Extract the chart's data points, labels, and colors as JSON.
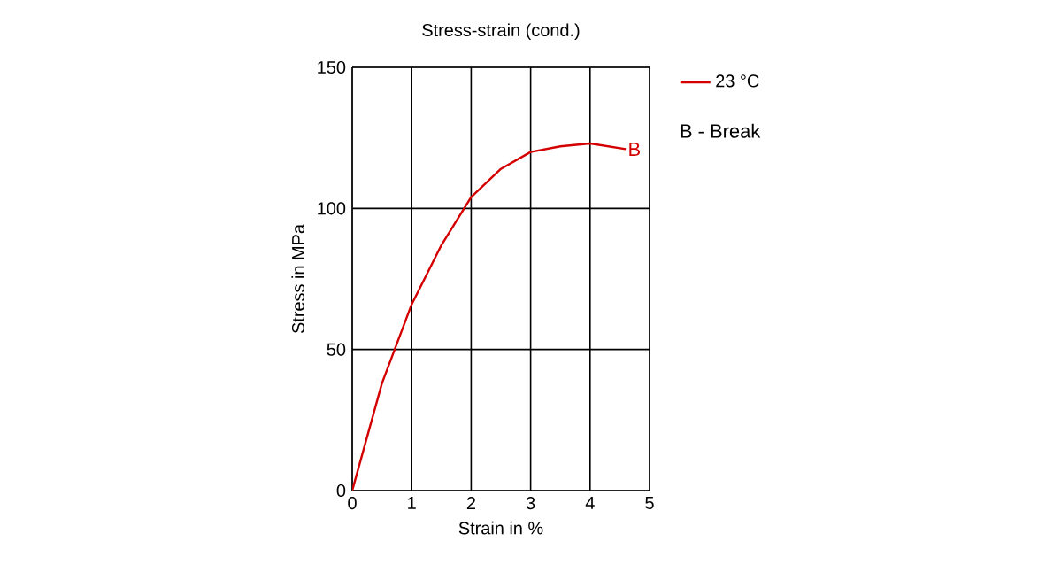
{
  "chart_data": {
    "type": "line",
    "title": "Stress-strain (cond.)",
    "xlabel": "Strain in %",
    "ylabel": "Stress in MPa",
    "x": [
      0,
      0.5,
      1,
      1.5,
      2,
      2.5,
      3,
      3.5,
      4,
      4.6
    ],
    "series": [
      {
        "name": "23 °C",
        "color": "#d40000",
        "values": [
          0,
          38,
          66,
          87,
          104,
          114,
          120,
          122,
          123,
          121
        ]
      }
    ],
    "xlim": [
      0,
      5
    ],
    "ylim": [
      0,
      150
    ],
    "xticks": [
      0,
      1,
      2,
      3,
      4,
      5
    ],
    "yticks": [
      0,
      50,
      100,
      150
    ],
    "grid": true,
    "legend": "top right",
    "marker": "none",
    "line_style": "solid",
    "annotations": [
      {
        "text": "B",
        "x": 4.6,
        "y": 121
      },
      "B - Break"
    ]
  }
}
